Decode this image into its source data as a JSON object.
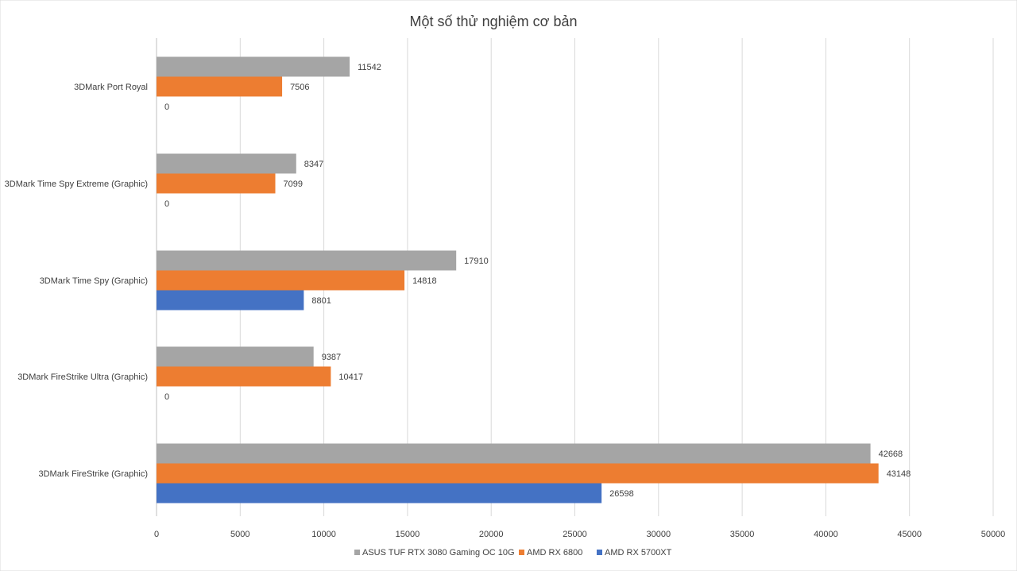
{
  "chart_data": {
    "type": "bar",
    "orientation": "horizontal",
    "title": "Một số thử nghiệm cơ bản",
    "xlabel": "",
    "ylabel": "",
    "categories": [
      "3DMark Port Royal",
      "3DMark Time Spy Extreme (Graphic)",
      "3DMark Time Spy (Graphic)",
      "3DMark FireStrike Ultra (Graphic)",
      "3DMark FireStrike (Graphic)"
    ],
    "series": [
      {
        "name": "ASUS TUF RTX 3080 Gaming OC 10G",
        "color": "#a5a5a5",
        "values": [
          11542,
          8347,
          17910,
          9387,
          42668
        ]
      },
      {
        "name": "AMD RX 6800",
        "color": "#ed7d31",
        "values": [
          7506,
          7099,
          14818,
          10417,
          43148
        ]
      },
      {
        "name": "AMD RX 5700XT",
        "color": "#4472c4",
        "values": [
          0,
          0,
          8801,
          0,
          26598
        ]
      }
    ],
    "xlim": [
      0,
      50000
    ],
    "xticks": [
      "0",
      "5000",
      "10000",
      "15000",
      "20000",
      "25000",
      "30000",
      "35000",
      "40000",
      "45000",
      "50000"
    ],
    "grid": "vertical",
    "legend_position": "bottom",
    "data_labels": true
  }
}
